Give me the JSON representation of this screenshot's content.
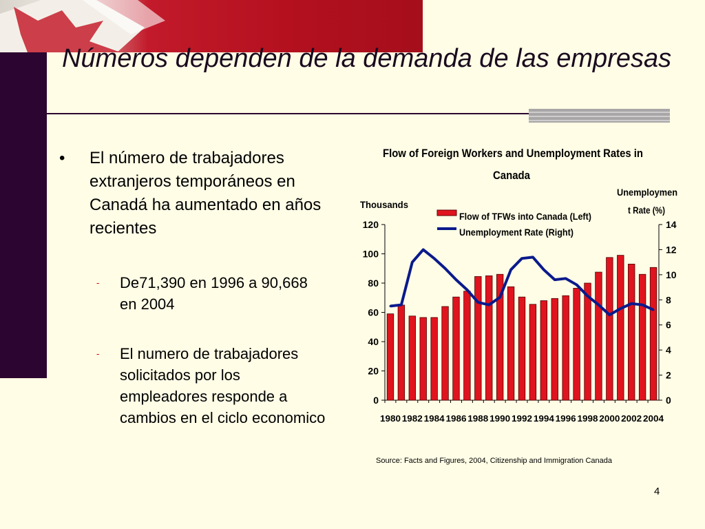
{
  "slide": {
    "title": "Números dependen de la demanda de las empresas",
    "bullet": "El número de trabajadores extranjeros temporáneos en Canadá ha aumentado en años recientes",
    "bullet_symbol": "•",
    "subbullets": [
      "De71,390 en 1996 a 90,668 en 2004",
      "El numero de trabajadores solicitados por los empleadores responde a cambios en el ciclo economico"
    ],
    "subbullet_symbol": "-",
    "source": "Source: Facts and Figures,  2004, Citizenship and Immigration Canada",
    "page_number": "4",
    "colors": {
      "background": "#fffde6",
      "sidebar": "#2c0530",
      "banner_red": "#b3101e",
      "bar_fill": "#e0141e",
      "line": "#0a1a8c"
    }
  },
  "chart_data": {
    "type": "bar",
    "title_line1": "Flow of Foreign Workers and Unemployment Rates in",
    "title_line2": "Canada",
    "y_left_label": "Thousands",
    "y_right_label_line1": "Unemploymen",
    "y_right_label_line2": "t Rate (%)",
    "ylim_left": [
      0,
      120
    ],
    "ylim_right": [
      0,
      14
    ],
    "y_left_ticks": [
      "0",
      "20",
      "40",
      "60",
      "80",
      "100",
      "120"
    ],
    "y_right_ticks": [
      "0",
      "2",
      "4",
      "6",
      "8",
      "10",
      "12",
      "14"
    ],
    "x_tick_labels": [
      "1980",
      "1982",
      "1984",
      "1986",
      "1988",
      "1990",
      "1992",
      "1994",
      "1996",
      "1998",
      "2000",
      "2002",
      "2004"
    ],
    "categories": [
      1980,
      1981,
      1982,
      1983,
      1984,
      1985,
      1986,
      1987,
      1988,
      1989,
      1990,
      1991,
      1992,
      1993,
      1994,
      1995,
      1996,
      1997,
      1998,
      1999,
      2000,
      2001,
      2002,
      2003,
      2004
    ],
    "series": [
      {
        "name": "Flow of TFWs into Canada (Left)",
        "kind": "bar",
        "axis": "left",
        "values": [
          59,
          65,
          57.5,
          56.5,
          56.5,
          64,
          70.5,
          74.5,
          84.5,
          85,
          86,
          77.5,
          70.5,
          65.5,
          68,
          69.5,
          71.4,
          76.5,
          80,
          87.5,
          97.5,
          99,
          93,
          86,
          90.7
        ]
      },
      {
        "name": "Unemployment Rate (Right)",
        "kind": "line",
        "axis": "right",
        "values": [
          7.5,
          7.6,
          11.0,
          12.0,
          11.3,
          10.5,
          9.6,
          8.8,
          7.8,
          7.6,
          8.2,
          10.4,
          11.3,
          11.4,
          10.4,
          9.6,
          9.7,
          9.2,
          8.3,
          7.6,
          6.8,
          7.3,
          7.7,
          7.6,
          7.2
        ]
      }
    ]
  }
}
